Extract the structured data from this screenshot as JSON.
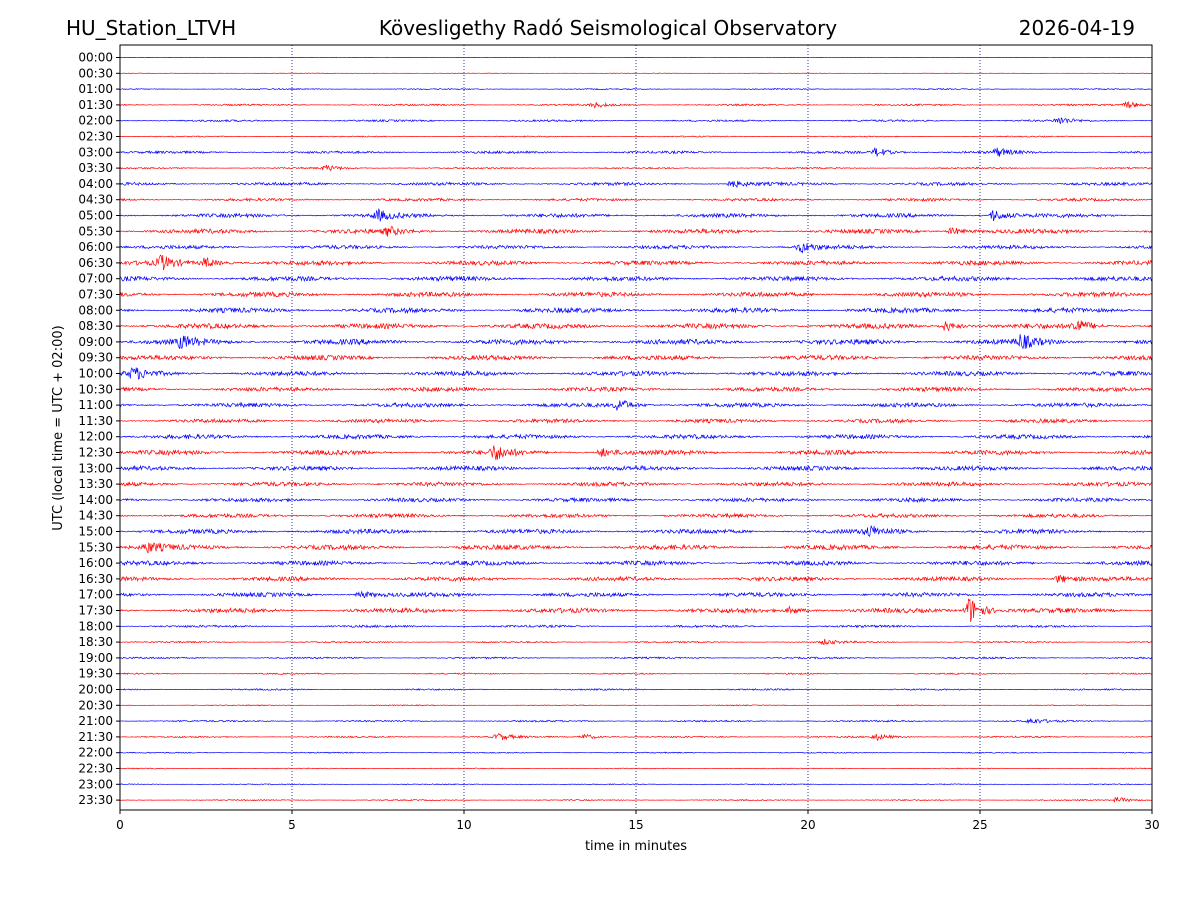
{
  "header": {
    "station": "HU_Station_LTVH",
    "observatory": "Kövesligethy Radó Seismological Observatory",
    "date": "2026-04-19"
  },
  "chart_data": {
    "type": "line",
    "title": "Kövesligethy Radó Seismological Observatory",
    "xlabel": "time in minutes",
    "ylabel": "UTC (local time = UTC + 02:00)",
    "xlim": [
      0,
      30
    ],
    "x_ticks": [
      0,
      5,
      10,
      15,
      20,
      25,
      30
    ],
    "vertical_gridlines_at": [
      5,
      10,
      15,
      20,
      25
    ],
    "colors": {
      "even_row": "#0000ff",
      "odd_row": "#ff0000",
      "grid": "#000080",
      "frame": "#000000"
    },
    "rows": [
      "00:00",
      "00:30",
      "01:00",
      "01:30",
      "02:00",
      "02:30",
      "03:00",
      "03:30",
      "04:00",
      "04:30",
      "05:00",
      "05:30",
      "06:00",
      "06:30",
      "07:00",
      "07:30",
      "08:00",
      "08:30",
      "09:00",
      "09:30",
      "10:00",
      "10:30",
      "11:00",
      "11:30",
      "12:00",
      "12:30",
      "13:00",
      "13:30",
      "14:00",
      "14:30",
      "15:00",
      "15:30",
      "16:00",
      "16:30",
      "17:00",
      "17:30",
      "18:00",
      "18:30",
      "19:00",
      "19:30",
      "20:00",
      "20:30",
      "21:00",
      "21:30",
      "22:00",
      "22:30",
      "23:00",
      "23:30"
    ],
    "noise_levels": [
      0.2,
      0.3,
      0.6,
      0.9,
      1.0,
      0.6,
      1.3,
      0.8,
      1.6,
      1.4,
      2.0,
      2.3,
      1.9,
      2.3,
      2.4,
      2.5,
      2.5,
      2.6,
      2.8,
      2.5,
      2.4,
      2.2,
      2.2,
      2.0,
      2.2,
      2.4,
      2.3,
      2.2,
      2.0,
      2.0,
      2.4,
      2.5,
      2.3,
      2.2,
      2.2,
      2.4,
      1.2,
      0.8,
      0.9,
      0.7,
      0.8,
      0.5,
      0.9,
      0.8,
      0.6,
      0.5,
      0.5,
      0.6
    ],
    "events": [
      {
        "row": "01:30",
        "minute": 13.8,
        "amplitude": 2.5
      },
      {
        "row": "01:30",
        "minute": 29.3,
        "amplitude": 3.5
      },
      {
        "row": "02:00",
        "minute": 27.3,
        "amplitude": 3.5
      },
      {
        "row": "03:00",
        "minute": 22.0,
        "amplitude": 4.5
      },
      {
        "row": "03:00",
        "minute": 25.5,
        "amplitude": 4.0
      },
      {
        "row": "03:30",
        "minute": 6.0,
        "amplitude": 3.0
      },
      {
        "row": "04:00",
        "minute": 17.8,
        "amplitude": 3.5
      },
      {
        "row": "05:00",
        "minute": 7.5,
        "amplitude": 5.0
      },
      {
        "row": "05:00",
        "minute": 25.4,
        "amplitude": 6.0
      },
      {
        "row": "05:30",
        "minute": 7.8,
        "amplitude": 4.0
      },
      {
        "row": "05:30",
        "minute": 24.2,
        "amplitude": 4.0
      },
      {
        "row": "06:00",
        "minute": 19.8,
        "amplitude": 5.0
      },
      {
        "row": "06:30",
        "minute": 1.2,
        "amplitude": 7.0
      },
      {
        "row": "06:30",
        "minute": 2.5,
        "amplitude": 5.0
      },
      {
        "row": "08:30",
        "minute": 24.0,
        "amplitude": 5.0
      },
      {
        "row": "08:30",
        "minute": 27.8,
        "amplitude": 7.0
      },
      {
        "row": "09:00",
        "minute": 1.8,
        "amplitude": 5.5
      },
      {
        "row": "09:00",
        "minute": 26.2,
        "amplitude": 6.5
      },
      {
        "row": "10:00",
        "minute": 0.4,
        "amplitude": 5.5
      },
      {
        "row": "11:00",
        "minute": 14.5,
        "amplitude": 6.0
      },
      {
        "row": "12:30",
        "minute": 10.9,
        "amplitude": 7.0
      },
      {
        "row": "12:30",
        "minute": 14.0,
        "amplitude": 4.5
      },
      {
        "row": "15:00",
        "minute": 21.8,
        "amplitude": 5.0
      },
      {
        "row": "15:30",
        "minute": 0.8,
        "amplitude": 4.5
      },
      {
        "row": "16:30",
        "minute": 27.3,
        "amplitude": 4.0
      },
      {
        "row": "17:00",
        "minute": 7.0,
        "amplitude": 3.5
      },
      {
        "row": "17:30",
        "minute": 24.7,
        "amplitude": 14.0
      },
      {
        "row": "17:30",
        "minute": 19.5,
        "amplitude": 3.5
      },
      {
        "row": "18:30",
        "minute": 20.5,
        "amplitude": 2.5
      },
      {
        "row": "21:00",
        "minute": 26.5,
        "amplitude": 2.5
      },
      {
        "row": "21:30",
        "minute": 11.0,
        "amplitude": 3.5
      },
      {
        "row": "21:30",
        "minute": 13.5,
        "amplitude": 3.0
      },
      {
        "row": "21:30",
        "minute": 22.0,
        "amplitude": 3.0
      },
      {
        "row": "23:30",
        "minute": 29.0,
        "amplitude": 3.0
      }
    ]
  }
}
